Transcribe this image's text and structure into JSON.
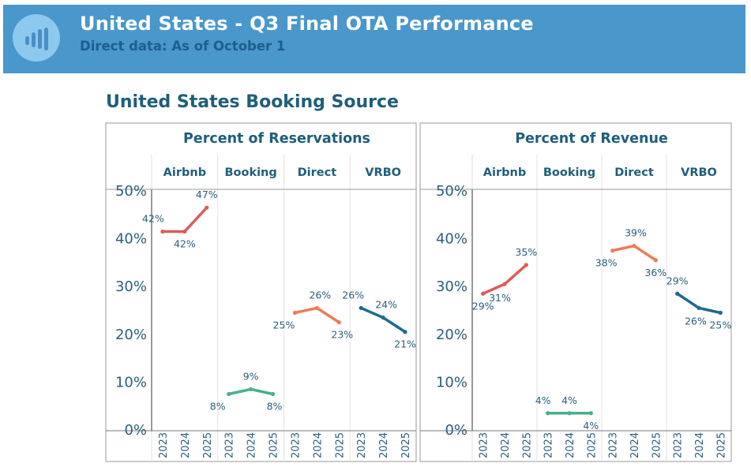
{
  "header": {
    "icon": "bar-chart-icon",
    "title": "United States - Q3 Final OTA Performance",
    "subtitle": "Direct data: As of October 1",
    "colors": {
      "banner": "#4A97CB",
      "icon_circle": "#8DC8EE",
      "subtitle": "#1D5E8E"
    }
  },
  "section_title": "United States Booking Source",
  "chart_data": [
    {
      "type": "line",
      "title": "Percent of Reservations",
      "categories": [
        "Airbnb",
        "Booking",
        "Direct",
        "VRBO"
      ],
      "x": [
        "2023",
        "2024",
        "2025"
      ],
      "ylim": [
        0,
        50
      ],
      "yticks": [
        "0%",
        "10%",
        "20%",
        "30%",
        "40%",
        "50%"
      ],
      "ytick_values": [
        0,
        10,
        20,
        30,
        40,
        50
      ],
      "xlabel": "",
      "ylabel": "",
      "grid": false,
      "series": [
        {
          "name": "Airbnb",
          "color": "#E05A5A",
          "values": [
            42,
            42,
            47
          ],
          "labels": [
            "42%",
            "42%",
            "47%"
          ]
        },
        {
          "name": "Booking",
          "color": "#4AAE8E",
          "values": [
            8,
            9,
            8
          ],
          "labels": [
            "8%",
            "9%",
            "8%"
          ]
        },
        {
          "name": "Direct",
          "color": "#EE7B55",
          "values": [
            25,
            26,
            23
          ],
          "labels": [
            "25%",
            "26%",
            "23%"
          ]
        },
        {
          "name": "VRBO",
          "color": "#1E6A8E",
          "values": [
            26,
            24,
            21
          ],
          "labels": [
            "26%",
            "24%",
            "21%"
          ]
        }
      ]
    },
    {
      "type": "line",
      "title": "Percent of Revenue",
      "categories": [
        "Airbnb",
        "Booking",
        "Direct",
        "VRBO"
      ],
      "x": [
        "2023",
        "2024",
        "2025"
      ],
      "ylim": [
        0,
        50
      ],
      "yticks": [
        "0%",
        "10%",
        "20%",
        "30%",
        "40%",
        "50%"
      ],
      "ytick_values": [
        0,
        10,
        20,
        30,
        40,
        50
      ],
      "xlabel": "",
      "ylabel": "",
      "grid": false,
      "series": [
        {
          "name": "Airbnb",
          "color": "#E05A5A",
          "values": [
            29,
            31,
            35
          ],
          "labels": [
            "29%",
            "31%",
            "35%"
          ]
        },
        {
          "name": "Booking",
          "color": "#4AAE8E",
          "values": [
            4,
            4,
            4
          ],
          "labels": [
            "4%",
            "4%",
            "4%"
          ]
        },
        {
          "name": "Direct",
          "color": "#EE7B55",
          "values": [
            38,
            39,
            36
          ],
          "labels": [
            "38%",
            "39%",
            "36%"
          ]
        },
        {
          "name": "VRBO",
          "color": "#1E6A8E",
          "values": [
            29,
            26,
            25
          ],
          "labels": [
            "29%",
            "26%",
            "25%"
          ]
        }
      ]
    }
  ]
}
